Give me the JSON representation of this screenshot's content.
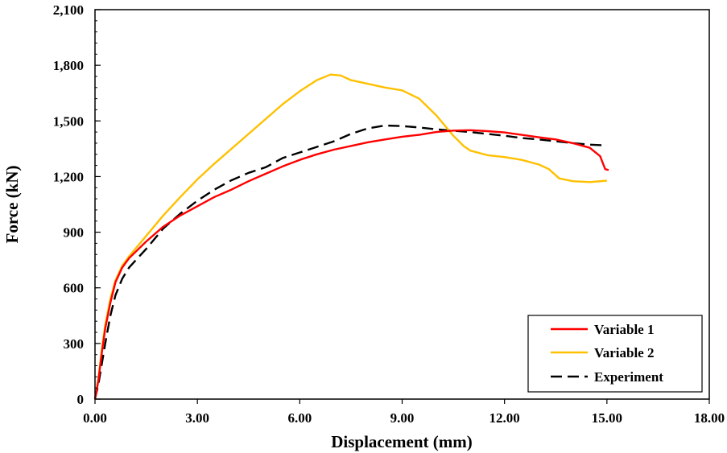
{
  "chart_data": {
    "type": "line",
    "title": "",
    "xlabel": "Displacement (mm)",
    "ylabel": "Force (kN)",
    "xlim": [
      0,
      18
    ],
    "ylim": [
      0,
      2100
    ],
    "x_ticks": [
      0,
      3,
      6,
      9,
      12,
      15,
      18
    ],
    "x_tick_labels": [
      "0.00",
      "3.00",
      "6.00",
      "9.00",
      "12.00",
      "15.00",
      "18.00"
    ],
    "y_ticks": [
      0,
      300,
      600,
      900,
      1200,
      1500,
      1800,
      2100
    ],
    "y_tick_labels": [
      "0",
      "300",
      "600",
      "900",
      "1,200",
      "1,500",
      "1,800",
      "2,100"
    ],
    "grid": false,
    "legend_position": "bottom-right",
    "series": [
      {
        "name": "Variable 1",
        "color": "#ff0000",
        "dash": "solid",
        "points": [
          [
            0,
            0
          ],
          [
            0.1,
            100
          ],
          [
            0.2,
            250
          ],
          [
            0.3,
            380
          ],
          [
            0.45,
            520
          ],
          [
            0.6,
            630
          ],
          [
            0.8,
            710
          ],
          [
            1,
            760
          ],
          [
            1.5,
            850
          ],
          [
            2,
            930
          ],
          [
            2.5,
            990
          ],
          [
            3,
            1040
          ],
          [
            3.5,
            1090
          ],
          [
            4,
            1130
          ],
          [
            4.5,
            1175
          ],
          [
            5,
            1215
          ],
          [
            5.5,
            1255
          ],
          [
            6,
            1290
          ],
          [
            6.5,
            1320
          ],
          [
            7,
            1345
          ],
          [
            7.5,
            1365
          ],
          [
            8,
            1385
          ],
          [
            8.5,
            1400
          ],
          [
            9,
            1415
          ],
          [
            9.5,
            1425
          ],
          [
            10,
            1440
          ],
          [
            10.5,
            1448
          ],
          [
            11,
            1450
          ],
          [
            11.5,
            1445
          ],
          [
            12,
            1438
          ],
          [
            12.5,
            1425
          ],
          [
            13,
            1412
          ],
          [
            13.5,
            1400
          ],
          [
            14,
            1380
          ],
          [
            14.5,
            1355
          ],
          [
            14.8,
            1310
          ],
          [
            14.95,
            1240
          ],
          [
            15.05,
            1235
          ]
        ]
      },
      {
        "name": "Variable 2",
        "color": "#ffc000",
        "dash": "solid",
        "points": [
          [
            0,
            0
          ],
          [
            0.1,
            110
          ],
          [
            0.2,
            270
          ],
          [
            0.3,
            400
          ],
          [
            0.45,
            540
          ],
          [
            0.6,
            640
          ],
          [
            0.8,
            720
          ],
          [
            1,
            770
          ],
          [
            1.5,
            880
          ],
          [
            2,
            990
          ],
          [
            2.5,
            1090
          ],
          [
            3,
            1185
          ],
          [
            3.5,
            1270
          ],
          [
            4,
            1350
          ],
          [
            4.5,
            1430
          ],
          [
            5,
            1510
          ],
          [
            5.5,
            1590
          ],
          [
            6,
            1660
          ],
          [
            6.5,
            1720
          ],
          [
            6.9,
            1750
          ],
          [
            7.2,
            1745
          ],
          [
            7.5,
            1720
          ],
          [
            8,
            1700
          ],
          [
            8.5,
            1680
          ],
          [
            9,
            1665
          ],
          [
            9.5,
            1620
          ],
          [
            10,
            1530
          ],
          [
            10.5,
            1420
          ],
          [
            10.8,
            1365
          ],
          [
            11,
            1340
          ],
          [
            11.5,
            1315
          ],
          [
            12,
            1305
          ],
          [
            12.5,
            1290
          ],
          [
            13,
            1265
          ],
          [
            13.3,
            1240
          ],
          [
            13.6,
            1190
          ],
          [
            14,
            1175
          ],
          [
            14.5,
            1170
          ],
          [
            15,
            1178
          ]
        ]
      },
      {
        "name": "Experiment",
        "color": "#000000",
        "dash": "dashed",
        "points": [
          [
            0,
            0
          ],
          [
            0.1,
            80
          ],
          [
            0.2,
            190
          ],
          [
            0.3,
            300
          ],
          [
            0.45,
            450
          ],
          [
            0.6,
            560
          ],
          [
            0.8,
            650
          ],
          [
            1,
            710
          ],
          [
            1.5,
            810
          ],
          [
            2,
            920
          ],
          [
            2.5,
            1000
          ],
          [
            3,
            1070
          ],
          [
            3.5,
            1130
          ],
          [
            4,
            1180
          ],
          [
            4.5,
            1220
          ],
          [
            5,
            1250
          ],
          [
            5.5,
            1300
          ],
          [
            6,
            1330
          ],
          [
            6.5,
            1360
          ],
          [
            7,
            1390
          ],
          [
            7.5,
            1430
          ],
          [
            8,
            1460
          ],
          [
            8.5,
            1475
          ],
          [
            9,
            1472
          ],
          [
            9.5,
            1465
          ],
          [
            10,
            1455
          ],
          [
            10.5,
            1447
          ],
          [
            11,
            1440
          ],
          [
            11.5,
            1430
          ],
          [
            12,
            1420
          ],
          [
            12.5,
            1408
          ],
          [
            13,
            1400
          ],
          [
            13.5,
            1390
          ],
          [
            14,
            1380
          ],
          [
            14.5,
            1372
          ],
          [
            15,
            1368
          ]
        ]
      }
    ]
  }
}
